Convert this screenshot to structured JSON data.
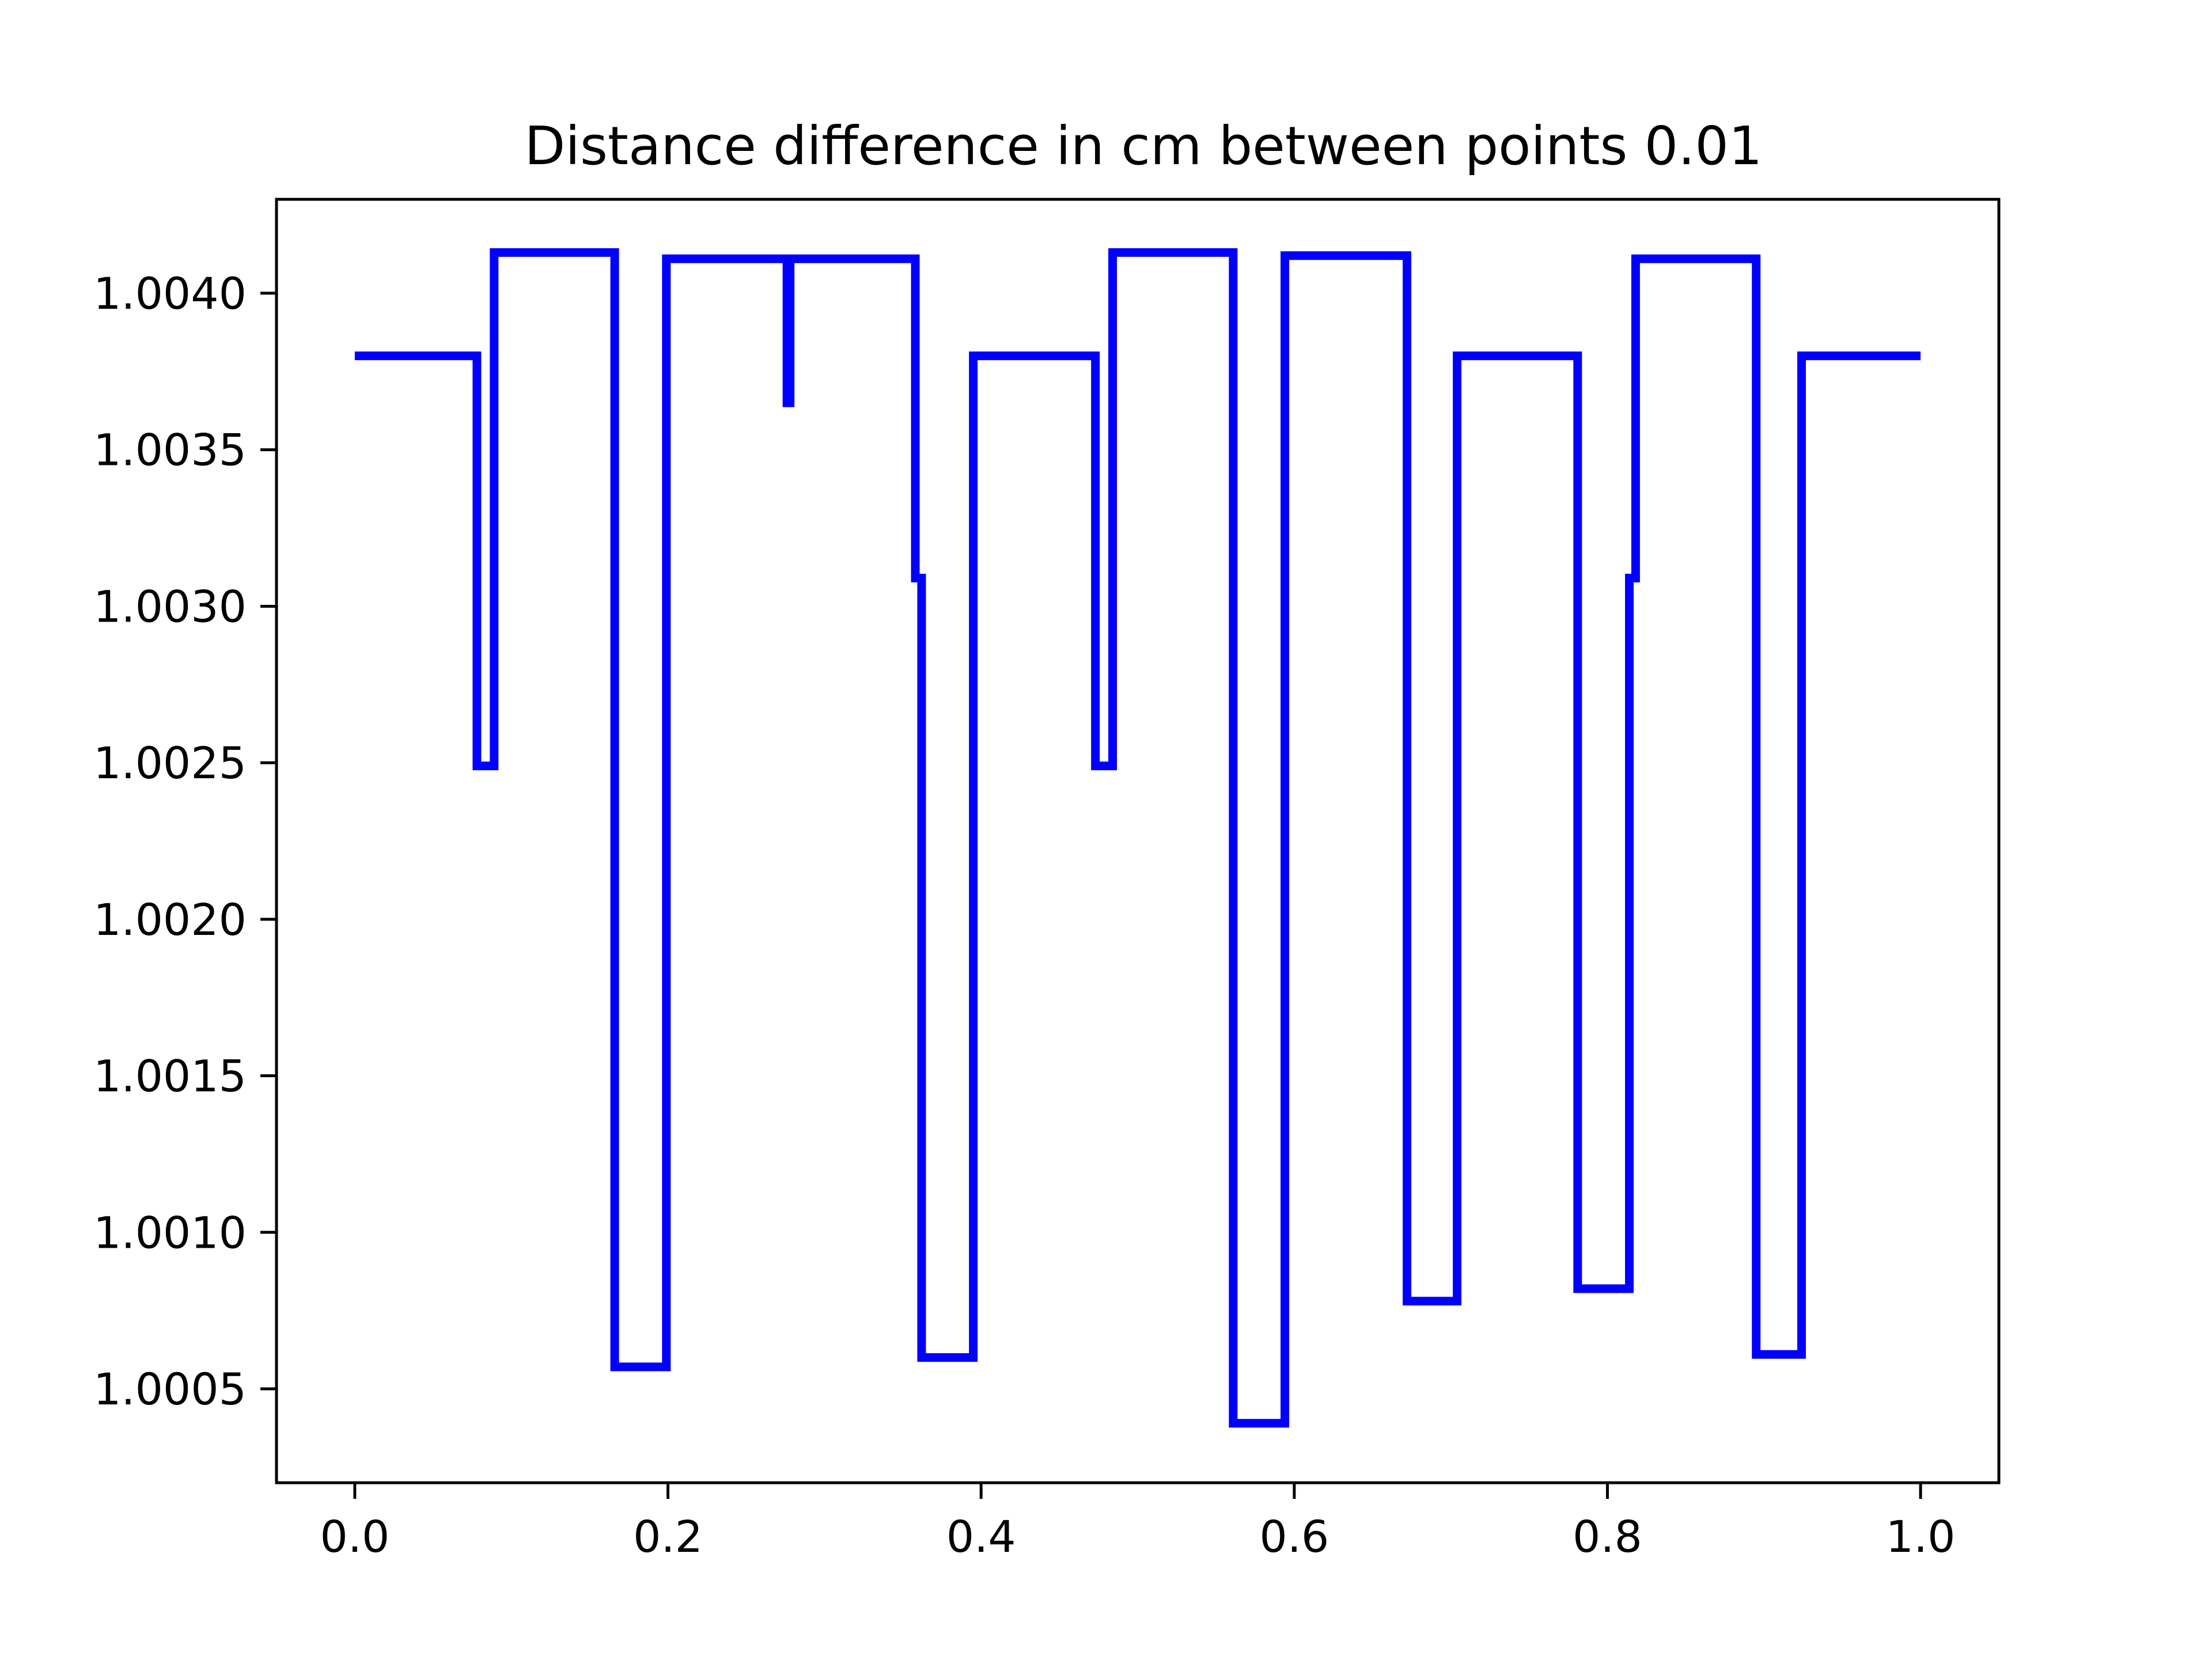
{
  "chart_data": {
    "type": "line",
    "title": "Distance difference in cm between points 0.01",
    "xlabel": "",
    "ylabel": "",
    "xlim": [
      -0.05,
      1.05
    ],
    "ylim": [
      1.0002,
      1.0043
    ],
    "x_ticks": [
      {
        "value": 0.0,
        "label": "0.0"
      },
      {
        "value": 0.2,
        "label": "0.2"
      },
      {
        "value": 0.4,
        "label": "0.4"
      },
      {
        "value": 0.6,
        "label": "0.6"
      },
      {
        "value": 0.8,
        "label": "0.8"
      },
      {
        "value": 1.0,
        "label": "1.0"
      }
    ],
    "y_ticks": [
      {
        "value": 1.0005,
        "label": "1.0005"
      },
      {
        "value": 1.001,
        "label": "1.0010"
      },
      {
        "value": 1.0015,
        "label": "1.0015"
      },
      {
        "value": 1.002,
        "label": "1.0020"
      },
      {
        "value": 1.0025,
        "label": "1.0025"
      },
      {
        "value": 1.003,
        "label": "1.0030"
      },
      {
        "value": 1.0035,
        "label": "1.0035"
      },
      {
        "value": 1.004,
        "label": "1.0040"
      }
    ],
    "grid": false,
    "series": [
      {
        "color": "#0000ff",
        "x": [
          0.0,
          0.078,
          0.078,
          0.089,
          0.089,
          0.166,
          0.166,
          0.199,
          0.199,
          0.276,
          0.276,
          0.278,
          0.278,
          0.28,
          0.28,
          0.358,
          0.358,
          0.362,
          0.362,
          0.395,
          0.395,
          0.473,
          0.473,
          0.484,
          0.484,
          0.561,
          0.561,
          0.594,
          0.594,
          0.672,
          0.672,
          0.704,
          0.704,
          0.781,
          0.781,
          0.814,
          0.814,
          0.818,
          0.818,
          0.895,
          0.895,
          0.924,
          0.924,
          1.0
        ],
        "y": [
          1.0038,
          1.0038,
          1.00249,
          1.00249,
          1.00413,
          1.00413,
          1.00057,
          1.00057,
          1.00411,
          1.00411,
          1.00365,
          1.00365,
          1.00411,
          1.00411,
          1.00411,
          1.00411,
          1.00309,
          1.00309,
          1.0006,
          1.0006,
          1.0038,
          1.0038,
          1.00249,
          1.00249,
          1.00413,
          1.00413,
          1.00039,
          1.00039,
          1.00412,
          1.00412,
          1.00078,
          1.00078,
          1.0038,
          1.0038,
          1.00082,
          1.00082,
          1.00309,
          1.00309,
          1.00411,
          1.00411,
          1.00061,
          1.00061,
          1.0038,
          1.0038
        ]
      }
    ]
  }
}
